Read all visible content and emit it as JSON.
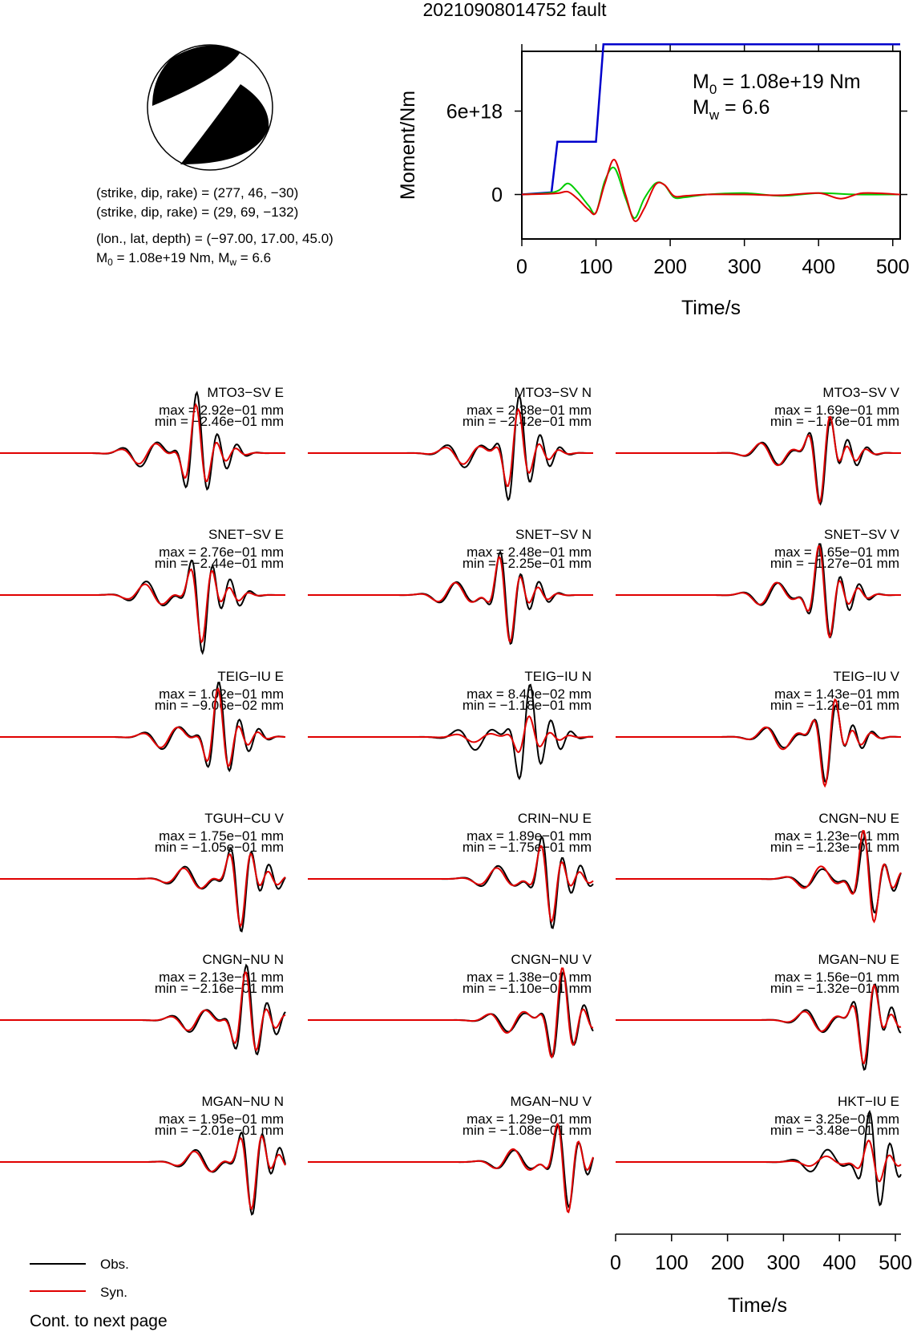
{
  "figure": {
    "title": "20210908014752 fault",
    "mechanism_params": [
      "(strike, dip, rake) = (277, 46, −30)",
      "(strike, dip, rake) = (29, 69, −132)",
      "(lon., lat, depth) = (−97.00, 17.00, 45.0)"
    ],
    "moment_summary": {
      "m0_label": "M",
      "m0_sub": "0",
      "m0_value": " = 1.08e+19 Nm, ",
      "mw_label": "M",
      "mw_sub": "w",
      "mw_value": " = 6.6"
    },
    "footer_note": "Cont. to next page",
    "legend": [
      {
        "label": "Obs.",
        "color": "#000000"
      },
      {
        "label": "Syn.",
        "color": "#e00000"
      }
    ],
    "colors": {
      "observed": "#000000",
      "synthetic": "#e00000",
      "cumulative_moment": "#0000cc",
      "moment_rate_a": "#00cc00",
      "moment_rate_b": "#e00000",
      "beachball_fill": "#000000"
    }
  },
  "chart_data": [
    {
      "type": "line",
      "panel": "source-time-function",
      "xlabel": "Time/s",
      "ylabel": "Moment/Nm",
      "xlim": [
        0,
        510
      ],
      "ylim": [
        -3.2e+18,
        1.03e+19
      ],
      "x_ticks": [
        "0",
        "100",
        "200",
        "300",
        "400",
        "500"
      ],
      "y_ticks": [
        "0",
        "6e+18"
      ],
      "annotations": {
        "m0_label": "M",
        "m0_sub": "0",
        "m0_value": " = 1.08e+19 Nm",
        "mw_label": "M",
        "mw_sub": "w",
        "mw_value": " = 6.6"
      },
      "series": [
        {
          "color": "#0000cc",
          "x": [
            0,
            40,
            48,
            100,
            110,
            510
          ],
          "y": [
            0,
            1.5e+17,
            3.8e+18,
            3.8e+18,
            1.08e+19,
            1.08e+19
          ]
        },
        {
          "color": "#00cc00",
          "x": [
            0,
            35,
            50,
            62,
            75,
            90,
            100,
            112,
            125,
            140,
            152,
            165,
            180,
            192,
            205,
            220,
            250,
            300,
            350,
            400,
            450,
            510
          ],
          "y": [
            0,
            1e+17,
            3e+17,
            8e+17,
            2e+17,
            -8e+17,
            -1.3e+18,
            1e+18,
            1.9e+18,
            -3e+17,
            -1.7e+18,
            -3e+17,
            8e+17,
            7e+17,
            -2e+17,
            -2e+17,
            0,
            1e+17,
            -1e+17,
            1e+17,
            0,
            0
          ]
        },
        {
          "color": "#e00000",
          "x": [
            0,
            35,
            50,
            62,
            75,
            90,
            100,
            112,
            125,
            140,
            152,
            165,
            180,
            192,
            205,
            220,
            250,
            300,
            350,
            400,
            430,
            460,
            510
          ],
          "y": [
            0,
            5e+16,
            1e+17,
            2e+17,
            -3e+17,
            -1.1e+18,
            -1.3e+18,
            8e+17,
            2.5e+18,
            -5e+16,
            -1.9e+18,
            -1e+18,
            7e+17,
            7e+17,
            -1e+17,
            -1e+17,
            0,
            0,
            -5e+16,
            1e+17,
            -3e+17,
            1e+17,
            0
          ]
        }
      ]
    },
    {
      "type": "line",
      "panel": "waveforms",
      "xlabel": "Time/s",
      "xlim": [
        0,
        510
      ],
      "x_ticks": [
        "0",
        "100",
        "200",
        "300",
        "400",
        "500"
      ],
      "stations": [
        {
          "name": "MTO3−SV E",
          "max": "max = 2.92e−01 mm",
          "min": "min = −2.46e−01 mm",
          "peak": 2.92,
          "trough": -2.46,
          "center": 350,
          "obs_envelope": 1.1,
          "syn_envelope": 0.9
        },
        {
          "name": "MTO3−SV N",
          "max": "max = 2.38e−01 mm",
          "min": "min = −2.42e−01 mm",
          "peak": 2.38,
          "trough": -2.42,
          "center": 370,
          "obs_envelope": 1.1,
          "syn_envelope": 0.85
        },
        {
          "name": "MTO3−SV V",
          "max": "max = 1.69e−01 mm",
          "min": "min = −1.76e−01 mm",
          "peak": 1.69,
          "trough": -1.76,
          "center": 370,
          "obs_envelope": 1.0,
          "syn_envelope": 1.0
        },
        {
          "name": "SNET−SV E",
          "max": "max = 2.76e−01 mm",
          "min": "min = −2.44e−01 mm",
          "peak": 2.76,
          "trough": -2.44,
          "center": 360,
          "obs_envelope": 1.1,
          "syn_envelope": 0.9
        },
        {
          "name": "SNET−SV N",
          "max": "max = 2.48e−01 mm",
          "min": "min = −2.25e−01 mm",
          "peak": 2.48,
          "trough": -2.25,
          "center": 355,
          "obs_envelope": 1.0,
          "syn_envelope": 0.95
        },
        {
          "name": "SNET−SV V",
          "max": "max = 1.65e−01 mm",
          "min": "min = −1.27e−01 mm",
          "peak": 1.65,
          "trough": -1.27,
          "center": 370,
          "obs_envelope": 1.0,
          "syn_envelope": 1.0
        },
        {
          "name": "TEIG−IU E",
          "max": "max = 1.02e−01 mm",
          "min": "min = −9.06e−02 mm",
          "peak": 1.02,
          "trough": -0.906,
          "center": 390,
          "obs_envelope": 1.0,
          "syn_envelope": 0.9
        },
        {
          "name": "TEIG−IU N",
          "max": "max = 8.40e−02 mm",
          "min": "min = −1.18e−01 mm",
          "peak": 0.84,
          "trough": -1.18,
          "center": 390,
          "obs_envelope": 1.0,
          "syn_envelope": 0.4
        },
        {
          "name": "TEIG−IU V",
          "max": "max = 1.43e−01 mm",
          "min": "min = −1.21e−01 mm",
          "peak": 1.43,
          "trough": -1.21,
          "center": 380,
          "obs_envelope": 0.9,
          "syn_envelope": 1.0
        },
        {
          "name": "TGUH−CU V",
          "max": "max = 1.75e−01 mm",
          "min": "min = −1.05e−01 mm",
          "peak": 1.75,
          "trough": -1.05,
          "center": 430,
          "obs_envelope": 1.0,
          "syn_envelope": 0.9
        },
        {
          "name": "CRIN−NU E",
          "max": "max = 1.89e−01 mm",
          "min": "min = −1.75e−01 mm",
          "peak": 1.89,
          "trough": -1.75,
          "center": 430,
          "obs_envelope": 1.0,
          "syn_envelope": 0.85
        },
        {
          "name": "CNGN−NU E",
          "max": "max = 1.23e−01 mm",
          "min": "min = −1.23e−01 mm",
          "peak": 1.23,
          "trough": -1.23,
          "center": 450,
          "obs_envelope": 0.8,
          "syn_envelope": 1.0
        },
        {
          "name": "CNGN−NU N",
          "max": "max = 2.13e−01 mm",
          "min": "min = −2.16e−01 mm",
          "peak": 2.13,
          "trough": -2.16,
          "center": 440,
          "obs_envelope": 1.0,
          "syn_envelope": 0.9
        },
        {
          "name": "CNGN−NU V",
          "max": "max = 1.38e−01 mm",
          "min": "min = −1.10e−01 mm",
          "peak": 1.38,
          "trough": -1.1,
          "center": 450,
          "obs_envelope": 0.9,
          "syn_envelope": 1.0
        },
        {
          "name": "MGAN−NU E",
          "max": "max = 1.56e−01 mm",
          "min": "min = −1.32e−01 mm",
          "peak": 1.56,
          "trough": -1.32,
          "center": 450,
          "obs_envelope": 1.0,
          "syn_envelope": 0.9
        },
        {
          "name": "MGAN−NU N",
          "max": "max = 1.95e−01 mm",
          "min": "min = −2.01e−01 mm",
          "peak": 1.95,
          "trough": -2.01,
          "center": 450,
          "obs_envelope": 1.0,
          "syn_envelope": 0.9
        },
        {
          "name": "MGAN−NU V",
          "max": "max = 1.29e−01 mm",
          "min": "min = −1.08e−01 mm",
          "peak": 1.29,
          "trough": -1.08,
          "center": 460,
          "obs_envelope": 0.9,
          "syn_envelope": 1.0
        },
        {
          "name": "HKT−IU E",
          "max": "max = 3.25e−01 mm",
          "min": "min = −3.48e−01 mm",
          "peak": 3.25,
          "trough": -3.48,
          "center": 460,
          "obs_envelope": 1.0,
          "syn_envelope": 0.45
        }
      ]
    }
  ]
}
